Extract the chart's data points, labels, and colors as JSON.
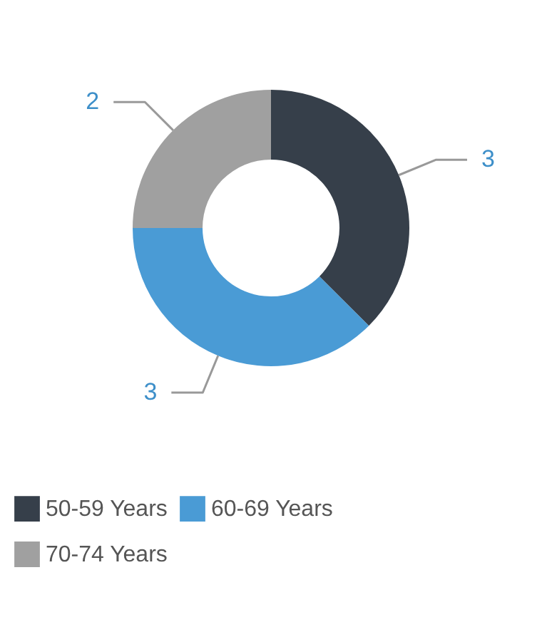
{
  "chart_data": {
    "type": "donut",
    "categories": [
      "50-59 Years",
      "60-69 Years",
      "70-74 Years"
    ],
    "values": [
      3,
      3,
      2
    ],
    "colors": [
      "#363f4a",
      "#4a9bd5",
      "#a0a0a0"
    ],
    "data_labels": true,
    "legend": "bottom"
  }
}
